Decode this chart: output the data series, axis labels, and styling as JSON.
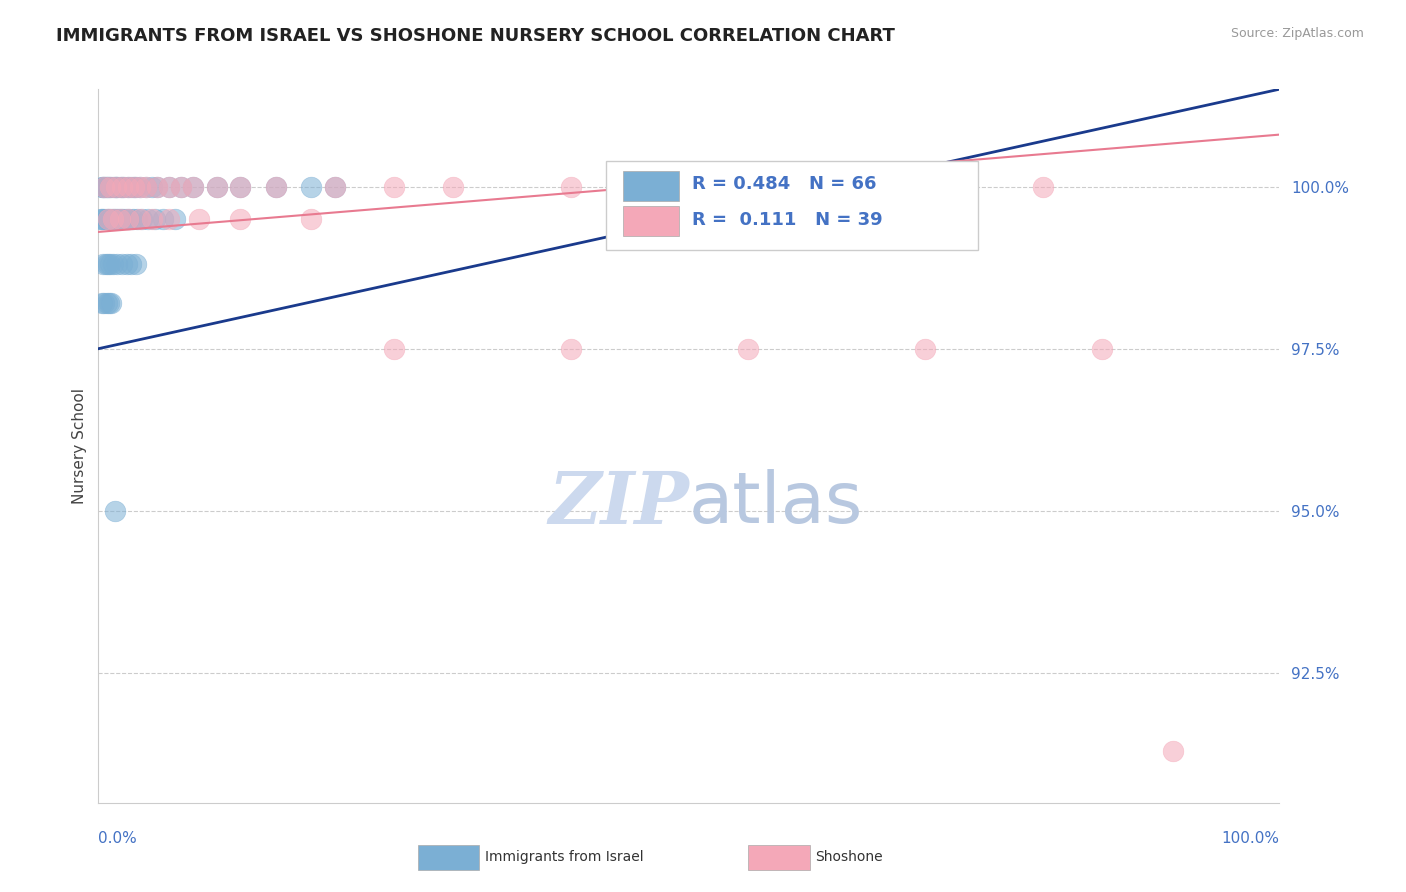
{
  "title": "IMMIGRANTS FROM ISRAEL VS SHOSHONE NURSERY SCHOOL CORRELATION CHART",
  "source": "Source: ZipAtlas.com",
  "ylabel": "Nursery School",
  "right_ytick_positions": [
    92.5,
    95.0,
    97.5,
    100.0
  ],
  "right_ytick_labels": [
    "92.5%",
    "95.0%",
    "97.5%",
    "100.0%"
  ],
  "xlim": [
    0.0,
    100.0
  ],
  "ylim": [
    90.5,
    101.5
  ],
  "blue_R": 0.484,
  "blue_N": 66,
  "pink_R": 0.111,
  "pink_N": 39,
  "blue_color": "#7bafd4",
  "pink_color": "#f4a8b8",
  "blue_line_color": "#1a3a8c",
  "pink_line_color": "#e87a90",
  "legend_R_color": "#4472c4",
  "watermark_color": "#ccd9ee",
  "blue_scatter_x": [
    0.3,
    0.4,
    0.5,
    0.6,
    0.7,
    0.8,
    1.0,
    1.2,
    1.4,
    1.5,
    1.6,
    1.8,
    2.0,
    2.2,
    2.5,
    2.8,
    3.0,
    3.2,
    3.5,
    4.0,
    4.5,
    5.0,
    6.0,
    7.0,
    8.0,
    10.0,
    12.0,
    15.0,
    18.0,
    20.0,
    0.2,
    0.3,
    0.5,
    0.7,
    0.9,
    1.1,
    1.3,
    1.5,
    1.7,
    1.9,
    2.1,
    2.3,
    2.6,
    2.9,
    3.3,
    3.7,
    4.2,
    4.8,
    5.5,
    6.5,
    0.4,
    0.6,
    0.8,
    1.0,
    1.2,
    1.6,
    2.0,
    2.4,
    2.8,
    3.2,
    0.3,
    0.5,
    0.7,
    0.9,
    1.1,
    1.4
  ],
  "blue_scatter_y": [
    100.0,
    100.0,
    100.0,
    100.0,
    100.0,
    100.0,
    100.0,
    100.0,
    100.0,
    100.0,
    100.0,
    100.0,
    100.0,
    100.0,
    100.0,
    100.0,
    100.0,
    100.0,
    100.0,
    100.0,
    100.0,
    100.0,
    100.0,
    100.0,
    100.0,
    100.0,
    100.0,
    100.0,
    100.0,
    100.0,
    99.5,
    99.5,
    99.5,
    99.5,
    99.5,
    99.5,
    99.5,
    99.5,
    99.5,
    99.5,
    99.5,
    99.5,
    99.5,
    99.5,
    99.5,
    99.5,
    99.5,
    99.5,
    99.5,
    99.5,
    98.8,
    98.8,
    98.8,
    98.8,
    98.8,
    98.8,
    98.8,
    98.8,
    98.8,
    98.8,
    98.2,
    98.2,
    98.2,
    98.2,
    98.2,
    95.0
  ],
  "pink_scatter_x": [
    0.5,
    1.0,
    1.5,
    2.0,
    2.5,
    3.0,
    3.5,
    4.0,
    5.0,
    6.0,
    7.0,
    8.0,
    10.0,
    12.0,
    15.0,
    20.0,
    25.0,
    30.0,
    40.0,
    50.0,
    60.0,
    70.0,
    80.0,
    0.8,
    1.2,
    1.8,
    2.5,
    3.5,
    4.5,
    6.0,
    8.5,
    12.0,
    18.0,
    25.0,
    40.0,
    55.0,
    70.0,
    85.0,
    91.0
  ],
  "pink_scatter_y": [
    100.0,
    100.0,
    100.0,
    100.0,
    100.0,
    100.0,
    100.0,
    100.0,
    100.0,
    100.0,
    100.0,
    100.0,
    100.0,
    100.0,
    100.0,
    100.0,
    100.0,
    100.0,
    100.0,
    100.0,
    100.0,
    100.0,
    100.0,
    99.5,
    99.5,
    99.5,
    99.5,
    99.5,
    99.5,
    99.5,
    99.5,
    99.5,
    99.5,
    97.5,
    97.5,
    97.5,
    97.5,
    97.5,
    91.3
  ],
  "blue_trend_x": [
    0.0,
    100.0
  ],
  "blue_trend_y": [
    97.5,
    101.5
  ],
  "pink_trend_x": [
    0.0,
    100.0
  ],
  "pink_trend_y": [
    99.3,
    100.8
  ]
}
